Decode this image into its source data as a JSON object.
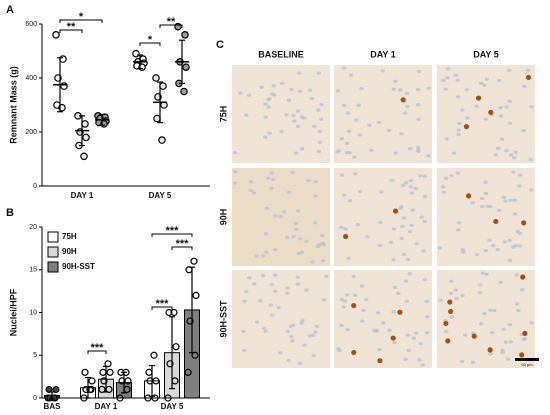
{
  "chart_data": [
    {
      "type": "dot",
      "panel": "A",
      "ylabel": "Remnant Mass (g)",
      "categories": [
        "DAY 1",
        "DAY 5"
      ],
      "ylim": [
        0,
        600
      ],
      "yticks": [
        0,
        200,
        400,
        600
      ],
      "series": [
        {
          "name": "75H",
          "color": "#ffffff",
          "points": [
            [
              560,
              470,
              400,
              370,
              300,
              290
            ],
            [
              490,
              470,
              460,
              455,
              445,
              440
            ]
          ],
          "means": [
            375,
            460
          ],
          "sd": [
            100,
            25
          ]
        },
        {
          "name": "90H",
          "color": "#e6e6e6",
          "points": [
            [
              260,
              230,
              200,
              180,
              150,
              110
            ],
            [
              400,
              370,
              330,
              300,
              250,
              170
            ]
          ],
          "means": [
            205,
            310
          ],
          "sd": [
            55,
            75
          ]
        },
        {
          "name": "90H-SST",
          "color": "#9a9a9a",
          "points": [
            [
              260,
              255,
              250,
              240,
              235,
              230
            ],
            [
              590,
              560,
              460,
              440,
              380,
              350
            ]
          ],
          "means": [
            245,
            460
          ],
          "sd": [
            20,
            80
          ]
        }
      ],
      "significance": [
        "*",
        "**",
        "*",
        "**"
      ]
    },
    {
      "type": "bar",
      "panel": "B",
      "ylabel": "Nuclei/HPF",
      "categories": [
        "DAY 1",
        "DAY 5"
      ],
      "ylim": [
        0,
        20
      ],
      "yticks": [
        0,
        5,
        10,
        15,
        20
      ],
      "baseline": {
        "name": "BAS",
        "color": "#404040",
        "mean": 0.3,
        "sd": 0.4,
        "points": [
          0,
          0,
          0,
          1,
          1,
          0
        ]
      },
      "series": [
        {
          "name": "75H",
          "color": "#ffffff",
          "means": [
            1.2,
            2
          ],
          "sd": [
            1.2,
            1.8
          ],
          "points": [
            [
              0,
              1,
              1,
              2,
              3,
              1
            ],
            [
              0,
              0,
              2,
              2,
              3,
              5
            ]
          ]
        },
        {
          "name": "90H",
          "color": "#d9d9d9",
          "means": [
            2.2,
            5.3
          ],
          "sd": [
            1.5,
            4.2
          ],
          "points": [
            [
              1,
              1,
              2,
              3,
              3,
              4
            ],
            [
              0,
              2,
              4,
              6,
              10,
              10
            ]
          ]
        },
        {
          "name": "90H-SST",
          "color": "#7f7f7f",
          "means": [
            1.8,
            10.3
          ],
          "sd": [
            1.2,
            5
          ],
          "points": [
            [
              0,
              1,
              2,
              2,
              3,
              3
            ],
            [
              3,
              5,
              9,
              12,
              15,
              16
            ]
          ]
        }
      ],
      "significance": [
        "***",
        "***",
        "***",
        "***"
      ]
    }
  ],
  "panel_c": {
    "label": "C",
    "columns": [
      "BASELINE",
      "DAY 1",
      "DAY 5"
    ],
    "rows": [
      "75H",
      "90H",
      "90H-SST"
    ],
    "scale_bar": "50 μm"
  }
}
